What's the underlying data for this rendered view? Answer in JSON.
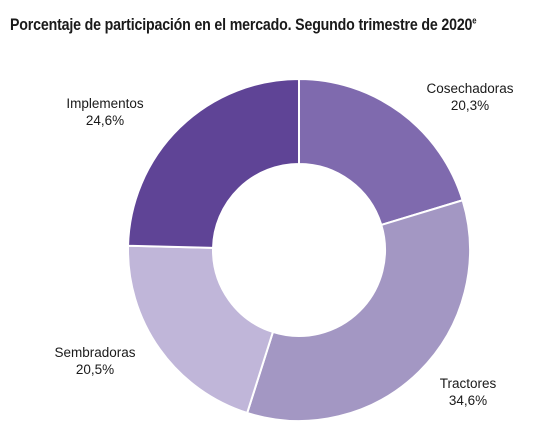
{
  "title": {
    "text": "Porcentaje de participación en el mercado. Segundo trimestre de 2020",
    "superscript": "e"
  },
  "chart_data": {
    "type": "pie",
    "donut": true,
    "start": "12 o'clock, clockwise",
    "title": "Porcentaje de participación en el mercado. Segundo trimestre de 2020e",
    "slices": [
      {
        "label": "Cosechadoras",
        "value": 20.3,
        "value_label": "20,3%",
        "color": "#7f6aae"
      },
      {
        "label": "Tractores",
        "value": 34.6,
        "value_label": "34,6%",
        "color": "#a397c3"
      },
      {
        "label": "Sembradoras",
        "value": 20.5,
        "value_label": "20,5%",
        "color": "#c0b6d9"
      },
      {
        "label": "Implementos",
        "value": 24.6,
        "value_label": "24,6%",
        "color": "#5f4496"
      }
    ]
  }
}
